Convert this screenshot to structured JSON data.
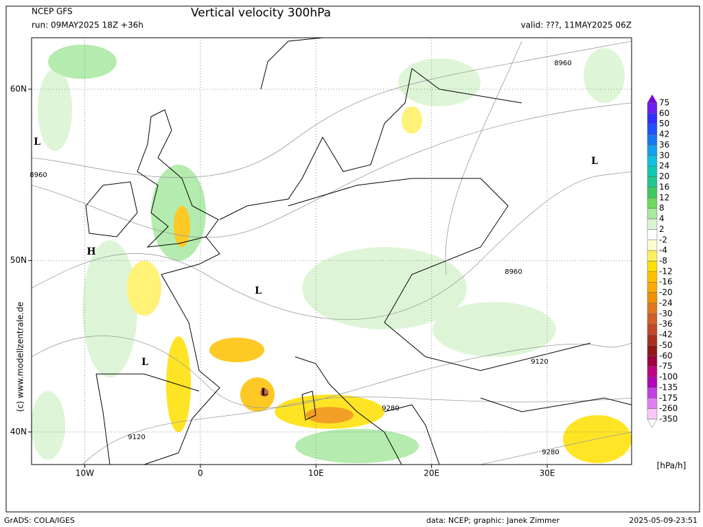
{
  "header": {
    "model": "NCEP GFS",
    "title": "Vertical velocity 300hPa",
    "run": "run: 09MAY2025 18Z +36h",
    "valid": "valid: ???, 11MAY2025 06Z"
  },
  "map": {
    "xlim": [
      -14.6,
      37.3
    ],
    "ylim": [
      38.1,
      63
    ],
    "xticks": [
      {
        "value": -10,
        "label": "10W"
      },
      0,
      {
        "value": 10,
        "label": "10E"
      },
      {
        "value": 20,
        "label": "20E"
      },
      {
        "value": 30,
        "label": "30E"
      }
    ],
    "yticks": [
      {
        "value": 60,
        "label": "60N"
      },
      {
        "value": 50,
        "label": "50N"
      },
      {
        "value": 40,
        "label": "40N"
      }
    ],
    "grid": true,
    "contour_labels": [
      "8960",
      "8960",
      "8960",
      "9120",
      "9120",
      "9280",
      "9280"
    ],
    "pressure_centers": [
      "L",
      "L",
      "H",
      "L",
      "L",
      "L"
    ]
  },
  "colorbar": {
    "levels": [
      75,
      60,
      50,
      42,
      36,
      30,
      24,
      20,
      16,
      12,
      8,
      4,
      2,
      -2,
      -4,
      -8,
      -12,
      -16,
      -20,
      -24,
      -30,
      -36,
      -42,
      -50,
      -60,
      -75,
      -100,
      -135,
      -175,
      -260,
      -350
    ],
    "colors": [
      "#8000e0",
      "#6a20f0",
      "#3030ff",
      "#2050ff",
      "#1878f0",
      "#10a0f0",
      "#10c0e0",
      "#10c8b0",
      "#20c890",
      "#40c860",
      "#70d860",
      "#a8e8a0",
      "#d8f4d0",
      "#ffffff",
      "#fffcd0",
      "#fff060",
      "#ffe000",
      "#ffc000",
      "#ffa800",
      "#f09000",
      "#e07820",
      "#d06028",
      "#c04828",
      "#a83020",
      "#901818",
      "#a00040",
      "#c00080",
      "#b000b8",
      "#c040e0",
      "#e080f0",
      "#f8c8f8",
      "#ffffff"
    ],
    "unit": "[hPa/h]"
  },
  "footer": {
    "copyright": "(c) www.modellzentrale.de",
    "software": "GrADS: COLA/IGES",
    "credits": "data: NCEP; graphic: Janek Zimmer",
    "timestamp": "2025-05-09-23:51"
  }
}
